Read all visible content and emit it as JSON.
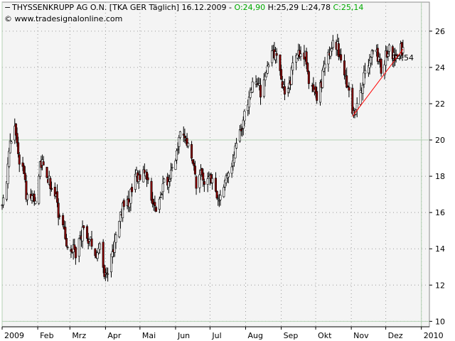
{
  "chart_data": {
    "type": "candlestick",
    "header": {
      "collapse_glyph": "−",
      "instrument": "THYSSENKRUPP AG O.N. [TKA GER  Täglich] 16.12.2009 -",
      "ohlc": [
        {
          "text": "O:24,90",
          "color": "#00aa00"
        },
        {
          "text": "H:25,29",
          "color": "#000000"
        },
        {
          "text": "L:24,78",
          "color": "#000000"
        },
        {
          "text": "C:25,14",
          "color": "#00aa00"
        }
      ],
      "source": "© www.tradesignalonline.com"
    },
    "colors": {
      "background": "#f4f4f4",
      "grid": "#9a9a9a",
      "up_body": "#ffffff",
      "down_body": "#8b0000",
      "wick": "#000000",
      "trendline": "#ff0000",
      "trend_label": "#cc0000",
      "reference_line": "#b4d2b4"
    },
    "x_axis": {
      "start": "2009-01-01",
      "end": "2010-01-08",
      "tick_labels": [
        {
          "date": "2009-01-01",
          "label": "2009"
        },
        {
          "date": "2009-02-01",
          "label": "Feb"
        },
        {
          "date": "2009-03-01",
          "label": "Mrz"
        },
        {
          "date": "2009-04-01",
          "label": "Apr"
        },
        {
          "date": "2009-05-01",
          "label": "Mai"
        },
        {
          "date": "2009-06-01",
          "label": "Jun"
        },
        {
          "date": "2009-07-01",
          "label": "Jul"
        },
        {
          "date": "2009-08-01",
          "label": "Aug"
        },
        {
          "date": "2009-09-01",
          "label": "Sep"
        },
        {
          "date": "2009-10-01",
          "label": "Okt"
        },
        {
          "date": "2009-11-01",
          "label": "Nov"
        },
        {
          "date": "2009-12-01",
          "label": "Dez"
        },
        {
          "date": "2010-01-01",
          "label": "2010"
        }
      ],
      "major_lines": [
        "2009-01-01",
        "2010-01-01"
      ]
    },
    "y_axis": {
      "min": 9.7,
      "max": 27.6,
      "ticks": [
        10,
        12,
        14,
        16,
        18,
        20,
        22,
        24,
        26
      ],
      "tick_labels": [
        "10",
        "12",
        "14",
        "16",
        "18",
        "20",
        "22",
        "24",
        "26"
      ],
      "major_lines": [
        10,
        20
      ]
    },
    "trendline": {
      "from": {
        "date": "2009-11-02",
        "value": 21.3
      },
      "to": {
        "date": "2009-12-16",
        "value": 25.0
      },
      "label": "24,54",
      "label_at": {
        "date": "2009-12-17",
        "value": 24.54
      }
    },
    "path": [
      [
        "2009-01-01",
        16.6
      ],
      [
        "2009-01-05",
        18.0
      ],
      [
        "2009-01-08",
        19.8
      ],
      [
        "2009-01-12",
        20.7
      ],
      [
        "2009-01-15",
        19.0
      ],
      [
        "2009-01-19",
        18.4
      ],
      [
        "2009-01-22",
        17.0
      ],
      [
        "2009-01-27",
        16.8
      ],
      [
        "2009-01-30",
        16.5
      ],
      [
        "2009-02-03",
        18.5
      ],
      [
        "2009-02-06",
        18.7
      ],
      [
        "2009-02-10",
        17.8
      ],
      [
        "2009-02-13",
        17.4
      ],
      [
        "2009-02-17",
        16.8
      ],
      [
        "2009-02-20",
        15.5
      ],
      [
        "2009-02-24",
        14.8
      ],
      [
        "2009-02-27",
        14.1
      ],
      [
        "2009-03-03",
        14.0
      ],
      [
        "2009-03-06",
        13.8
      ],
      [
        "2009-03-10",
        14.5
      ],
      [
        "2009-03-13",
        15.5
      ],
      [
        "2009-03-17",
        14.2
      ],
      [
        "2009-03-20",
        14.4
      ],
      [
        "2009-03-24",
        13.6
      ],
      [
        "2009-03-27",
        14.0
      ],
      [
        "2009-03-31",
        12.6
      ],
      [
        "2009-04-03",
        12.9
      ],
      [
        "2009-04-07",
        13.8
      ],
      [
        "2009-04-10",
        14.8
      ],
      [
        "2009-04-14",
        15.8
      ],
      [
        "2009-04-17",
        16.6
      ],
      [
        "2009-04-21",
        16.4
      ],
      [
        "2009-04-24",
        17.4
      ],
      [
        "2009-04-28",
        18.0
      ],
      [
        "2009-05-01",
        17.6
      ],
      [
        "2009-05-05",
        18.2
      ],
      [
        "2009-05-08",
        17.6
      ],
      [
        "2009-05-12",
        16.8
      ],
      [
        "2009-05-15",
        15.8
      ],
      [
        "2009-05-19",
        17.0
      ],
      [
        "2009-05-22",
        18.0
      ],
      [
        "2009-05-26",
        17.4
      ],
      [
        "2009-05-29",
        18.3
      ],
      [
        "2009-06-02",
        19.5
      ],
      [
        "2009-06-05",
        20.3
      ],
      [
        "2009-06-09",
        20.0
      ],
      [
        "2009-06-12",
        19.8
      ],
      [
        "2009-06-16",
        18.8
      ],
      [
        "2009-06-19",
        17.6
      ],
      [
        "2009-06-23",
        18.0
      ],
      [
        "2009-06-26",
        17.8
      ],
      [
        "2009-06-30",
        18.2
      ],
      [
        "2009-07-03",
        17.6
      ],
      [
        "2009-07-07",
        16.8
      ],
      [
        "2009-07-10",
        16.6
      ],
      [
        "2009-07-14",
        17.6
      ],
      [
        "2009-07-17",
        18.2
      ],
      [
        "2009-07-21",
        19.0
      ],
      [
        "2009-07-24",
        19.5
      ],
      [
        "2009-07-28",
        20.6
      ],
      [
        "2009-07-31",
        21.4
      ],
      [
        "2009-08-04",
        22.2
      ],
      [
        "2009-08-07",
        23.0
      ],
      [
        "2009-08-11",
        23.2
      ],
      [
        "2009-08-14",
        22.6
      ],
      [
        "2009-08-18",
        23.4
      ],
      [
        "2009-08-21",
        24.4
      ],
      [
        "2009-08-25",
        25.0
      ],
      [
        "2009-08-28",
        24.4
      ],
      [
        "2009-09-01",
        23.4
      ],
      [
        "2009-09-04",
        22.8
      ],
      [
        "2009-09-08",
        23.0
      ],
      [
        "2009-09-11",
        24.0
      ],
      [
        "2009-09-15",
        24.6
      ],
      [
        "2009-09-18",
        25.0
      ],
      [
        "2009-09-22",
        24.6
      ],
      [
        "2009-09-25",
        23.4
      ],
      [
        "2009-09-29",
        23.0
      ],
      [
        "2009-10-02",
        22.4
      ],
      [
        "2009-10-06",
        23.2
      ],
      [
        "2009-10-09",
        24.2
      ],
      [
        "2009-10-13",
        24.8
      ],
      [
        "2009-10-16",
        25.6
      ],
      [
        "2009-10-20",
        25.2
      ],
      [
        "2009-10-23",
        24.2
      ],
      [
        "2009-10-27",
        23.4
      ],
      [
        "2009-10-30",
        22.4
      ],
      [
        "2009-11-03",
        21.6
      ],
      [
        "2009-11-06",
        22.0
      ],
      [
        "2009-11-10",
        22.8
      ],
      [
        "2009-11-13",
        23.8
      ],
      [
        "2009-11-17",
        24.6
      ],
      [
        "2009-11-20",
        25.0
      ],
      [
        "2009-11-24",
        24.6
      ],
      [
        "2009-11-27",
        23.8
      ],
      [
        "2009-12-01",
        24.6
      ],
      [
        "2009-12-04",
        25.2
      ],
      [
        "2009-12-08",
        24.6
      ],
      [
        "2009-12-11",
        24.9
      ],
      [
        "2009-12-16",
        25.0
      ]
    ]
  }
}
